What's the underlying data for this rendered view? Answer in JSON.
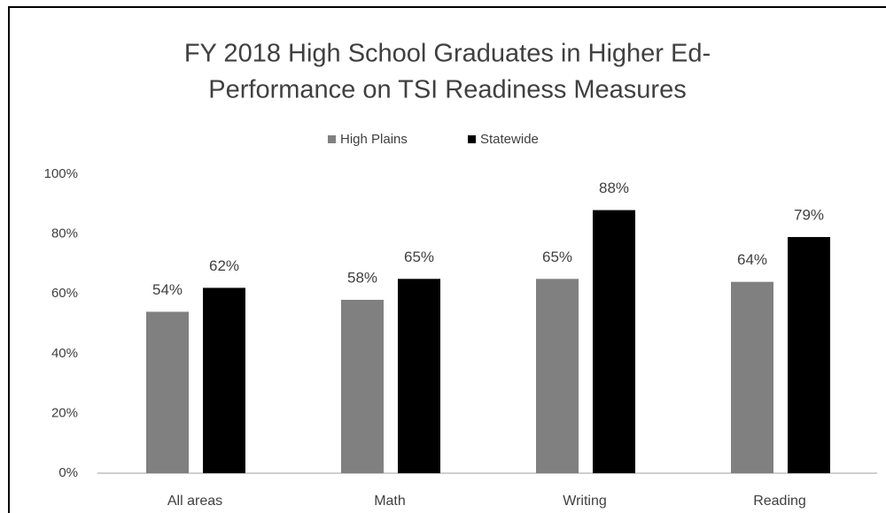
{
  "chart_data": {
    "type": "bar",
    "title": [
      "FY 2018 High School Graduates in Higher Ed-",
      "Performance on TSI Readiness Measures"
    ],
    "categories": [
      "All areas",
      "Math",
      "Writing",
      "Reading"
    ],
    "series": [
      {
        "name": "High Plains",
        "color": "#808080",
        "values": [
          54,
          58,
          65,
          64
        ],
        "value_labels": [
          "54%",
          "58%",
          "65%",
          "64%"
        ]
      },
      {
        "name": "Statewide",
        "color": "#000000",
        "values": [
          62,
          65,
          88,
          79
        ],
        "value_labels": [
          "62%",
          "65%",
          "88%",
          "79%"
        ]
      }
    ],
    "ylim": [
      0,
      100
    ],
    "yticks": [
      {
        "value": 0,
        "label": "0%"
      },
      {
        "value": 20,
        "label": "20%"
      },
      {
        "value": 40,
        "label": "40%"
      },
      {
        "value": 60,
        "label": "60%"
      },
      {
        "value": 80,
        "label": "80%"
      },
      {
        "value": 100,
        "label": "100%"
      }
    ],
    "grid": false,
    "legend": "top"
  }
}
